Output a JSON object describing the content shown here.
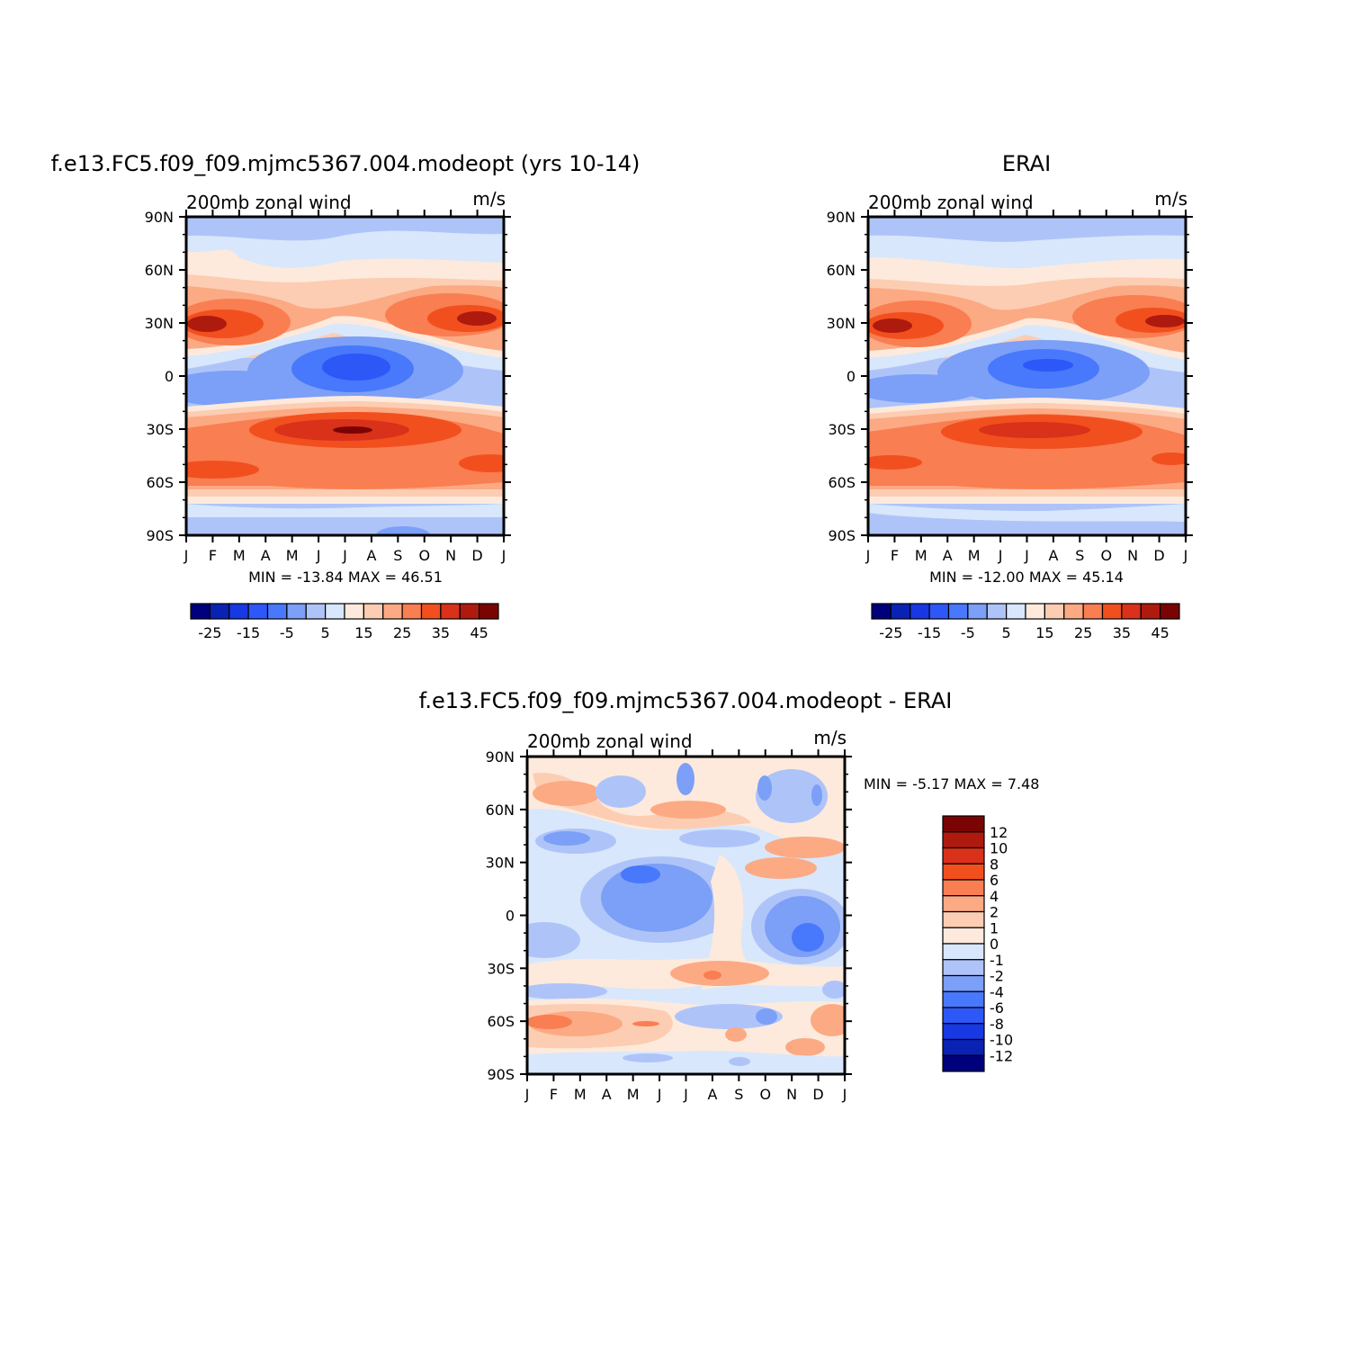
{
  "chart_data": [
    {
      "id": "model",
      "type": "heatmap",
      "title": "f.e13.FC5.f09_f09.mjmc5367.004.modeopt (yrs 10-14)",
      "left_label": "200mb zonal wind",
      "right_label": "m/s",
      "x": [
        "J",
        "F",
        "M",
        "A",
        "M",
        "J",
        "J",
        "A",
        "S",
        "O",
        "N",
        "D",
        "J"
      ],
      "y": [
        "90N",
        "60N",
        "30N",
        "0",
        "30S",
        "60S",
        "90S"
      ],
      "ylim": [
        -90,
        90
      ],
      "min_max_text": "MIN = -13.84 MAX = 46.51",
      "min": -13.84,
      "max": 46.51,
      "colorbar": {
        "orientation": "horizontal",
        "labels": [
          "-25",
          "-15",
          "-5",
          "5",
          "15",
          "25",
          "35",
          "45"
        ]
      }
    },
    {
      "id": "obs",
      "type": "heatmap",
      "title": "ERAI",
      "left_label": "200mb zonal wind",
      "right_label": "m/s",
      "x": [
        "J",
        "F",
        "M",
        "A",
        "M",
        "J",
        "J",
        "A",
        "S",
        "O",
        "N",
        "D",
        "J"
      ],
      "y": [
        "90N",
        "60N",
        "30N",
        "0",
        "30S",
        "60S",
        "90S"
      ],
      "ylim": [
        -90,
        90
      ],
      "min_max_text": "MIN = -12.00 MAX = 45.14",
      "min": -12.0,
      "max": 45.14,
      "colorbar": {
        "orientation": "horizontal",
        "labels": [
          "-25",
          "-15",
          "-5",
          "5",
          "15",
          "25",
          "35",
          "45"
        ]
      }
    },
    {
      "id": "diff",
      "type": "heatmap",
      "title": "f.e13.FC5.f09_f09.mjmc5367.004.modeopt - ERAI",
      "left_label": "200mb zonal wind",
      "right_label": "m/s",
      "x": [
        "J",
        "F",
        "M",
        "A",
        "M",
        "J",
        "J",
        "A",
        "S",
        "O",
        "N",
        "D",
        "J"
      ],
      "y": [
        "90N",
        "60N",
        "30N",
        "0",
        "30S",
        "60S",
        "90S"
      ],
      "ylim": [
        -90,
        90
      ],
      "min_max_text": "MIN = -5.17 MAX = 7.48",
      "min": -5.17,
      "max": 7.48,
      "colorbar": {
        "orientation": "vertical",
        "labels": [
          "12",
          "10",
          "8",
          "6",
          "4",
          "2",
          "1",
          "0",
          "-1",
          "-2",
          "-4",
          "-6",
          "-8",
          "-10",
          "-12"
        ]
      }
    }
  ],
  "palette": [
    "#00007d",
    "#0a22b4",
    "#1738e3",
    "#2d57f7",
    "#4878fb",
    "#7c9ff7",
    "#aec4f9",
    "#d8e7fb",
    "#fdeadc",
    "#fccdb2",
    "#fbaa84",
    "#f97e51",
    "#f24f1f",
    "#d9311a",
    "#af1a0e",
    "#7a0403"
  ]
}
